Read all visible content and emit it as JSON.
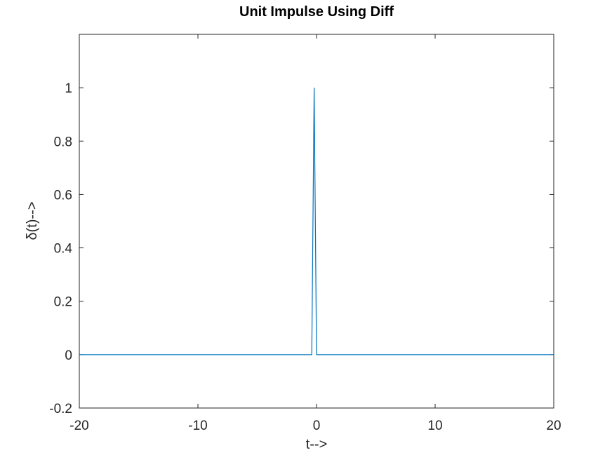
{
  "chart_data": {
    "type": "line",
    "title": "Unit Impulse Using Diff",
    "xlabel": "t-->",
    "ylabel": "δ(t)-->",
    "xlim": [
      -20,
      20
    ],
    "ylim": [
      -0.2,
      1.2
    ],
    "xticks": [
      -20,
      -10,
      0,
      10,
      20
    ],
    "yticks": [
      -0.2,
      0,
      0.2,
      0.4,
      0.6,
      0.8,
      1
    ],
    "xtick_labels": [
      "-20",
      "-10",
      "0",
      "10",
      "20"
    ],
    "ytick_labels": [
      "-0.2",
      "0",
      "0.2",
      "0.4",
      "0.6",
      "0.8",
      "1"
    ],
    "grid": false,
    "box": true,
    "line_color": "#0072bd",
    "series": [
      {
        "x": [
          -20,
          -0.4,
          -0.2,
          0,
          20
        ],
        "y": [
          0,
          0,
          1,
          0,
          0
        ]
      }
    ]
  }
}
